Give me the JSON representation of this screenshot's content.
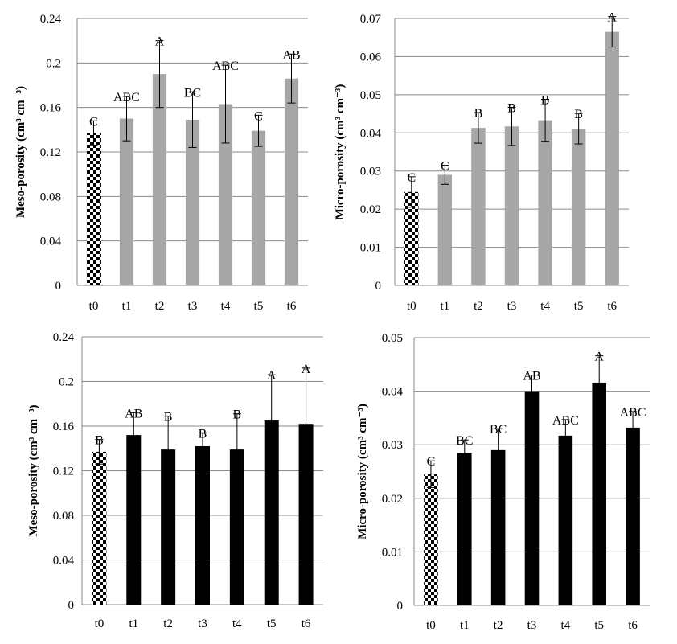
{
  "colors": {
    "t0_fill": "checker-black-white",
    "top_bars": "#a6a6a6",
    "bottom_bars": "#000000",
    "gridline": "#888888",
    "axis": "#888888"
  },
  "chart_data": [
    {
      "type": "bar",
      "categories": [
        "t0",
        "t1",
        "t2",
        "t3",
        "t4",
        "t5",
        "t6"
      ],
      "values": [
        0.137,
        0.15,
        0.19,
        0.149,
        0.163,
        0.139,
        0.186
      ],
      "errors": [
        0.011,
        0.02,
        0.03,
        0.025,
        0.035,
        0.014,
        0.022
      ],
      "significance": [
        "C",
        "ABC",
        "A",
        "BC",
        "ABC",
        "C",
        "AB"
      ],
      "ylabel": "Meso-porosity (cm³ cm⁻³)",
      "ylim": [
        0,
        0.24
      ],
      "yticks": [
        "0",
        "0.04",
        "0.08",
        "0.12",
        "0.16",
        "0.2",
        "0.24"
      ],
      "grid": true,
      "bar_color": "#a6a6a6"
    },
    {
      "type": "bar",
      "categories": [
        "t0",
        "t1",
        "t2",
        "t3",
        "t4",
        "t5",
        "t6"
      ],
      "values": [
        0.0245,
        0.029,
        0.0413,
        0.0417,
        0.0433,
        0.0411,
        0.0665
      ],
      "errors": [
        0.004,
        0.0025,
        0.004,
        0.005,
        0.0055,
        0.004,
        0.004
      ],
      "significance": [
        "C",
        "C",
        "B",
        "B",
        "B",
        "B",
        "A"
      ],
      "ylabel": "Micro-porosity (cm³ cm⁻³)",
      "ylim": [
        0,
        0.07
      ],
      "yticks": [
        "0",
        "0.01",
        "0.02",
        "0.03",
        "0.04",
        "0.05",
        "0.06",
        "0.07"
      ],
      "grid": true,
      "bar_color": "#a6a6a6"
    },
    {
      "type": "bar",
      "categories": [
        "t0",
        "t1",
        "t2",
        "t3",
        "t4",
        "t5",
        "t6"
      ],
      "values": [
        0.137,
        0.152,
        0.139,
        0.142,
        0.139,
        0.165,
        0.162
      ],
      "errors": [
        0.011,
        0.02,
        0.03,
        0.012,
        0.032,
        0.041,
        0.05
      ],
      "significance": [
        "B",
        "AB",
        "B",
        "B",
        "B",
        "A",
        "A"
      ],
      "ylabel": "Meso-porosity (cm³ cm⁻³)",
      "ylim": [
        0,
        0.24
      ],
      "yticks": [
        "0",
        "0.04",
        "0.08",
        "0.12",
        "0.16",
        "0.2",
        "0.24"
      ],
      "grid": true,
      "bar_color": "#000000"
    },
    {
      "type": "bar",
      "categories": [
        "t0",
        "t1",
        "t2",
        "t3",
        "t4",
        "t5",
        "t6"
      ],
      "values": [
        0.0245,
        0.0284,
        0.029,
        0.04,
        0.0317,
        0.0416,
        0.0332
      ],
      "errors": [
        0.0025,
        0.0025,
        0.004,
        0.003,
        0.003,
        0.005,
        0.003
      ],
      "significance": [
        "C",
        "BC",
        "BC",
        "AB",
        "ABC",
        "A",
        "ABC"
      ],
      "ylabel": "Micro-porosity (cm³ cm⁻³)",
      "ylim": [
        0,
        0.05
      ],
      "yticks": [
        "0",
        "0.01",
        "0.02",
        "0.03",
        "0.04",
        "0.05"
      ],
      "grid": true,
      "bar_color": "#000000"
    }
  ]
}
